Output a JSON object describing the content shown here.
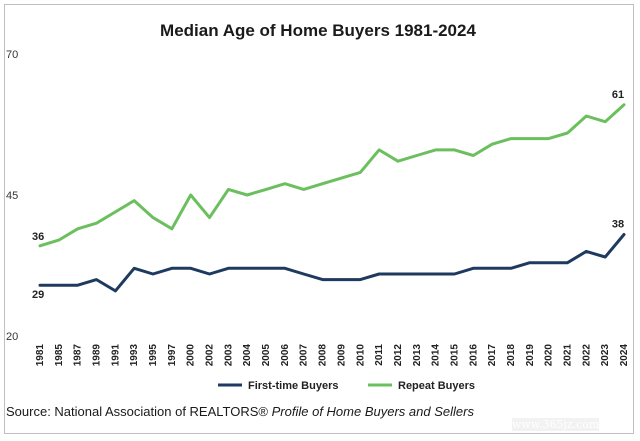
{
  "chart_data": {
    "type": "line",
    "title": "Median Age of Home Buyers 1981-2024",
    "xlabel": "",
    "ylabel": "",
    "ylim": [
      20,
      70
    ],
    "yticks": [
      20,
      45,
      70
    ],
    "grid": false,
    "legend_position": "bottom",
    "x": [
      "1981",
      "1985",
      "1987",
      "1989",
      "1991",
      "1993",
      "1995",
      "1997",
      "2000",
      "2002",
      "2003",
      "2004",
      "2005",
      "2006",
      "2007",
      "2008",
      "2009",
      "2010",
      "2011",
      "2012",
      "2013",
      "2014",
      "2015",
      "2016",
      "2017",
      "2018",
      "2019",
      "2020",
      "2021",
      "2022",
      "2023",
      "2024"
    ],
    "series": [
      {
        "name": "First-time Buyers",
        "color": "#1f3a5f",
        "values": [
          29,
          29,
          29,
          30,
          28,
          32,
          31,
          32,
          32,
          31,
          32,
          32,
          32,
          32,
          31,
          30,
          30,
          30,
          31,
          31,
          31,
          31,
          31,
          32,
          32,
          32,
          33,
          33,
          33,
          35,
          34,
          38
        ],
        "start_label": "29",
        "end_label": "38"
      },
      {
        "name": "Repeat Buyers",
        "color": "#6cbf5e",
        "values": [
          36,
          37,
          39,
          40,
          42,
          44,
          41,
          39,
          45,
          41,
          46,
          45,
          46,
          47,
          46,
          47,
          48,
          49,
          53,
          51,
          52,
          53,
          53,
          52,
          54,
          55,
          55,
          55,
          56,
          59,
          58,
          61
        ],
        "start_label": "36",
        "end_label": "61"
      }
    ]
  },
  "source": {
    "prefix": "Source: National Association of REALTORS®",
    "italic": "Profile of Home Buyers and Sellers"
  },
  "watermark": "www.365jz.com"
}
